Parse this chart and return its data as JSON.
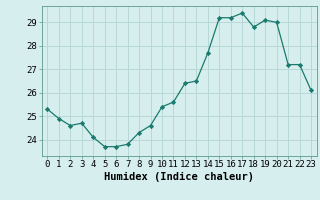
{
  "x": [
    0,
    1,
    2,
    3,
    4,
    5,
    6,
    7,
    8,
    9,
    10,
    11,
    12,
    13,
    14,
    15,
    16,
    17,
    18,
    19,
    20,
    21,
    22,
    23
  ],
  "y": [
    25.3,
    24.9,
    24.6,
    24.7,
    24.1,
    23.7,
    23.7,
    23.8,
    24.3,
    24.6,
    25.4,
    25.6,
    26.4,
    26.5,
    27.7,
    29.2,
    29.2,
    29.4,
    28.8,
    29.1,
    29.0,
    27.2,
    27.2,
    26.1
  ],
  "line_color": "#1a7a6e",
  "marker": "D",
  "marker_size": 2.2,
  "bg_color": "#d6eeee",
  "grid_color": "#b8d8d8",
  "xlabel": "Humidex (Indice chaleur)",
  "xlim": [
    -0.5,
    23.5
  ],
  "ylim": [
    23.3,
    29.7
  ],
  "yticks": [
    24,
    25,
    26,
    27,
    28,
    29
  ],
  "xticks": [
    0,
    1,
    2,
    3,
    4,
    5,
    6,
    7,
    8,
    9,
    10,
    11,
    12,
    13,
    14,
    15,
    16,
    17,
    18,
    19,
    20,
    21,
    22,
    23
  ],
  "xtick_labels": [
    "0",
    "1",
    "2",
    "3",
    "4",
    "5",
    "6",
    "7",
    "8",
    "9",
    "10",
    "11",
    "12",
    "13",
    "14",
    "15",
    "16",
    "17",
    "18",
    "19",
    "20",
    "21",
    "22",
    "23"
  ],
  "tick_font_size": 6.5,
  "label_font_size": 7.5
}
